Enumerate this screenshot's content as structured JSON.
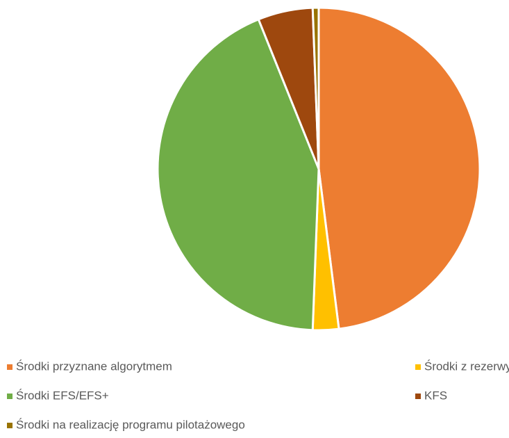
{
  "chart_data": {
    "type": "pie",
    "categories": [
      "Środki przyznane algorytmem",
      "Środki z rezerwy Ministra",
      "Środki EFS/EFS+",
      "KFS",
      "Środki na realizację programu pilotażowego"
    ],
    "values": [
      48,
      2.6,
      43.3,
      5.5,
      0.6
    ],
    "colors": [
      "#ED7D31",
      "#FFC000",
      "#70AD47",
      "#9E480E",
      "#997300"
    ],
    "legend": "bottom"
  }
}
